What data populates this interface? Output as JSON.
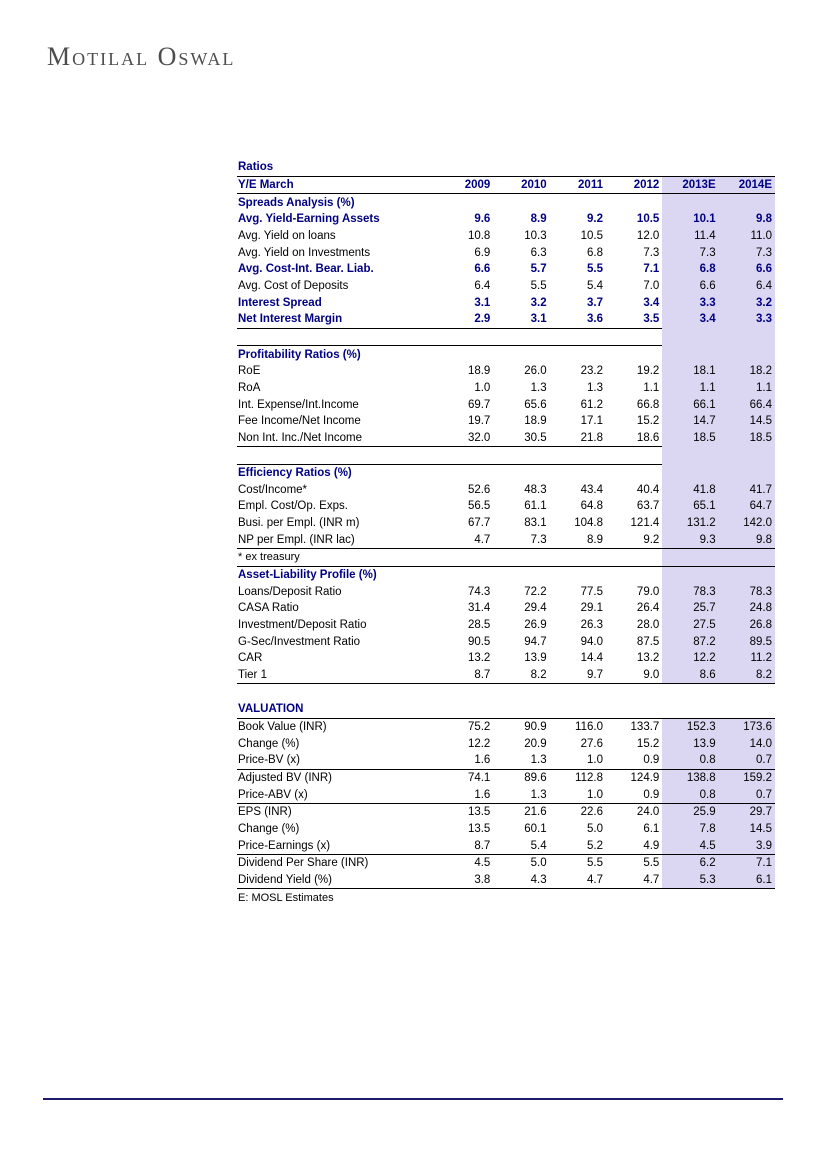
{
  "page": {
    "logo": "Motilal Oswal"
  },
  "colors": {
    "accent_navy": "#000082",
    "highlight_lavender": "#dbd7f2",
    "rule_black": "#000000",
    "footer_rule_navy": "#1f1a6e",
    "logo_gray": "#4d4d4f"
  },
  "table": {
    "title": "Ratios",
    "header": {
      "label": "Y/E March",
      "columns": [
        "2009",
        "2010",
        "2011",
        "2012",
        "2013E",
        "2014E"
      ]
    },
    "estimate_columns": [
      "2013E",
      "2014E"
    ],
    "rows": [
      {
        "type": "title",
        "label": "Ratios",
        "hl": false
      },
      {
        "type": "header",
        "label": "Y/E March",
        "values": [
          "2009",
          "2010",
          "2011",
          "2012",
          "2013E",
          "2014E"
        ],
        "bt": "f",
        "bb": "f",
        "hl": true
      },
      {
        "type": "section",
        "label": "Spreads Analysis (%)",
        "hl": true
      },
      {
        "type": "data",
        "bold": true,
        "label": "Avg. Yield-Earning Assets",
        "values": [
          "9.6",
          "8.9",
          "9.2",
          "10.5",
          "10.1",
          "9.8"
        ]
      },
      {
        "type": "data",
        "label": "Avg. Yield on loans",
        "values": [
          "10.8",
          "10.3",
          "10.5",
          "12.0",
          "11.4",
          "11.0"
        ]
      },
      {
        "type": "data",
        "label": "Avg. Yield on Investments",
        "values": [
          "6.9",
          "6.3",
          "6.8",
          "7.3",
          "7.3",
          "7.3"
        ]
      },
      {
        "type": "data",
        "bold": true,
        "label": "Avg. Cost-Int. Bear. Liab.",
        "values": [
          "6.6",
          "5.7",
          "5.5",
          "7.1",
          "6.8",
          "6.6"
        ]
      },
      {
        "type": "data",
        "label": "Avg. Cost of Deposits",
        "values": [
          "6.4",
          "5.5",
          "5.4",
          "7.0",
          "6.6",
          "6.4"
        ]
      },
      {
        "type": "data",
        "bold": true,
        "label": "Interest Spread",
        "values": [
          "3.1",
          "3.2",
          "3.7",
          "3.4",
          "3.3",
          "3.2"
        ]
      },
      {
        "type": "data",
        "bold": true,
        "label": "Net Interest Margin",
        "values": [
          "2.9",
          "3.1",
          "3.6",
          "3.5",
          "3.4",
          "3.3"
        ],
        "bb": "l"
      },
      {
        "type": "gap",
        "hl": true
      },
      {
        "type": "section",
        "label": "Profitability Ratios (%)",
        "bt": "l",
        "hl": true
      },
      {
        "type": "data",
        "label": "RoE",
        "values": [
          "18.9",
          "26.0",
          "23.2",
          "19.2",
          "18.1",
          "18.2"
        ]
      },
      {
        "type": "data",
        "label": "RoA",
        "values": [
          "1.0",
          "1.3",
          "1.3",
          "1.1",
          "1.1",
          "1.1"
        ]
      },
      {
        "type": "data",
        "label": "Int. Expense/Int.Income",
        "values": [
          "69.7",
          "65.6",
          "61.2",
          "66.8",
          "66.1",
          "66.4"
        ]
      },
      {
        "type": "data",
        "label": "Fee Income/Net Income",
        "values": [
          "19.7",
          "18.9",
          "17.1",
          "15.2",
          "14.7",
          "14.5"
        ]
      },
      {
        "type": "data",
        "label": "Non Int. Inc./Net Income",
        "values": [
          "32.0",
          "30.5",
          "21.8",
          "18.6",
          "18.5",
          "18.5"
        ],
        "bb": "l"
      },
      {
        "type": "gap",
        "hl": true
      },
      {
        "type": "section",
        "label": "Efficiency Ratios (%)",
        "bt": "l",
        "hl": true
      },
      {
        "type": "data",
        "label": "Cost/Income*",
        "values": [
          "52.6",
          "48.3",
          "43.4",
          "40.4",
          "41.8",
          "41.7"
        ]
      },
      {
        "type": "data",
        "label": "Empl. Cost/Op. Exps.",
        "values": [
          "56.5",
          "61.1",
          "64.8",
          "63.7",
          "65.1",
          "64.7"
        ]
      },
      {
        "type": "data",
        "label": "Busi. per Empl. (INR m)",
        "values": [
          "67.7",
          "83.1",
          "104.8",
          "121.4",
          "131.2",
          "142.0"
        ]
      },
      {
        "type": "data",
        "label": "NP per Empl. (INR lac)",
        "values": [
          "4.7",
          "7.3",
          "8.9",
          "9.2",
          "9.3",
          "9.8"
        ],
        "bb": "f"
      },
      {
        "type": "note",
        "label": "* ex treasury",
        "bb": "f",
        "hl": true
      },
      {
        "type": "section",
        "label": "Asset-Liability Profile (%)",
        "hl": true
      },
      {
        "type": "data",
        "label": "Loans/Deposit Ratio",
        "values": [
          "74.3",
          "72.2",
          "77.5",
          "79.0",
          "78.3",
          "78.3"
        ]
      },
      {
        "type": "data",
        "label": "CASA Ratio",
        "values": [
          "31.4",
          "29.4",
          "29.1",
          "26.4",
          "25.7",
          "24.8"
        ]
      },
      {
        "type": "data",
        "label": "Investment/Deposit Ratio",
        "values": [
          "28.5",
          "26.9",
          "26.3",
          "28.0",
          "27.5",
          "26.8"
        ]
      },
      {
        "type": "data",
        "label": "G-Sec/Investment Ratio",
        "values": [
          "90.5",
          "94.7",
          "94.0",
          "87.5",
          "87.2",
          "89.5"
        ]
      },
      {
        "type": "data",
        "label": "CAR",
        "values": [
          "13.2",
          "13.9",
          "14.4",
          "13.2",
          "12.2",
          "11.2"
        ]
      },
      {
        "type": "data",
        "label": "Tier 1",
        "values": [
          "8.7",
          "8.2",
          "9.7",
          "9.0",
          "8.6",
          "8.2"
        ],
        "bb": "f"
      },
      {
        "type": "gap",
        "hl": false
      },
      {
        "type": "section",
        "label": "VALUATION",
        "bb": "f",
        "hl": false
      },
      {
        "type": "data",
        "label": "Book Value (INR)",
        "values": [
          "75.2",
          "90.9",
          "116.0",
          "133.7",
          "152.3",
          "173.6"
        ]
      },
      {
        "type": "data",
        "label": "Change (%)",
        "values": [
          "12.2",
          "20.9",
          "27.6",
          "15.2",
          "13.9",
          "14.0"
        ]
      },
      {
        "type": "data",
        "label": "Price-BV (x)",
        "values": [
          "1.6",
          "1.3",
          "1.0",
          "0.9",
          "0.8",
          "0.7"
        ],
        "bb": "f"
      },
      {
        "type": "data",
        "label": "Adjusted BV (INR)",
        "values": [
          "74.1",
          "89.6",
          "112.8",
          "124.9",
          "138.8",
          "159.2"
        ]
      },
      {
        "type": "data",
        "label": "Price-ABV (x)",
        "values": [
          "1.6",
          "1.3",
          "1.0",
          "0.9",
          "0.8",
          "0.7"
        ],
        "bb": "f"
      },
      {
        "type": "data",
        "label": "EPS (INR)",
        "values": [
          "13.5",
          "21.6",
          "22.6",
          "24.0",
          "25.9",
          "29.7"
        ]
      },
      {
        "type": "data",
        "label": "Change (%)",
        "values": [
          "13.5",
          "60.1",
          "5.0",
          "6.1",
          "7.8",
          "14.5"
        ]
      },
      {
        "type": "data",
        "label": "Price-Earnings (x)",
        "values": [
          "8.7",
          "5.4",
          "5.2",
          "4.9",
          "4.5",
          "3.9"
        ],
        "bb": "f"
      },
      {
        "type": "data",
        "label": "Dividend Per Share (INR)",
        "values": [
          "4.5",
          "5.0",
          "5.5",
          "5.5",
          "6.2",
          "7.1"
        ]
      },
      {
        "type": "data",
        "label": "Dividend Yield (%)",
        "values": [
          "3.8",
          "4.3",
          "4.7",
          "4.7",
          "5.3",
          "6.1"
        ],
        "bb": "f"
      },
      {
        "type": "note",
        "label": "E: MOSL Estimates",
        "hl": false
      }
    ]
  }
}
